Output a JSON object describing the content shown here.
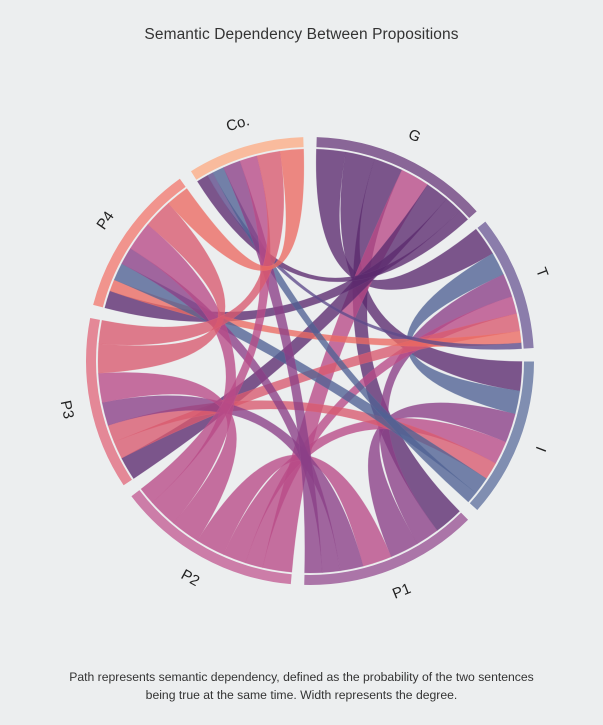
{
  "chart_data": {
    "type": "chord",
    "title": "Semantic Dependency Between Propositions",
    "groups": [
      {
        "name": "G",
        "color": "#5b2a6e"
      },
      {
        "name": "T",
        "color": "#5e4a8a"
      },
      {
        "name": "I",
        "color": "#4f6293"
      },
      {
        "name": "P1",
        "color": "#8a3f86"
      },
      {
        "name": "P2",
        "color": "#b84a86"
      },
      {
        "name": "P3",
        "color": "#d95a6e"
      },
      {
        "name": "P4",
        "color": "#ec6a61"
      },
      {
        "name": "Co.",
        "color": "#f7a077"
      }
    ],
    "matrix": [
      [
        0,
        5,
        5,
        5,
        5,
        4,
        3,
        2
      ],
      [
        5,
        0,
        4,
        4,
        3,
        3,
        2,
        1
      ],
      [
        5,
        4,
        0,
        5,
        4,
        3,
        3,
        2
      ],
      [
        5,
        4,
        5,
        0,
        5,
        4,
        3,
        3
      ],
      [
        5,
        3,
        4,
        5,
        0,
        5,
        5,
        3
      ],
      [
        4,
        3,
        3,
        4,
        5,
        0,
        5,
        4
      ],
      [
        3,
        2,
        3,
        3,
        5,
        5,
        0,
        4
      ],
      [
        2,
        1,
        2,
        3,
        3,
        4,
        4,
        0
      ]
    ]
  },
  "caption": {
    "line1": "Path represents semantic dependency, defined as the probability of the two sentences",
    "line2": "being true at the same time. Width represents the degree."
  }
}
